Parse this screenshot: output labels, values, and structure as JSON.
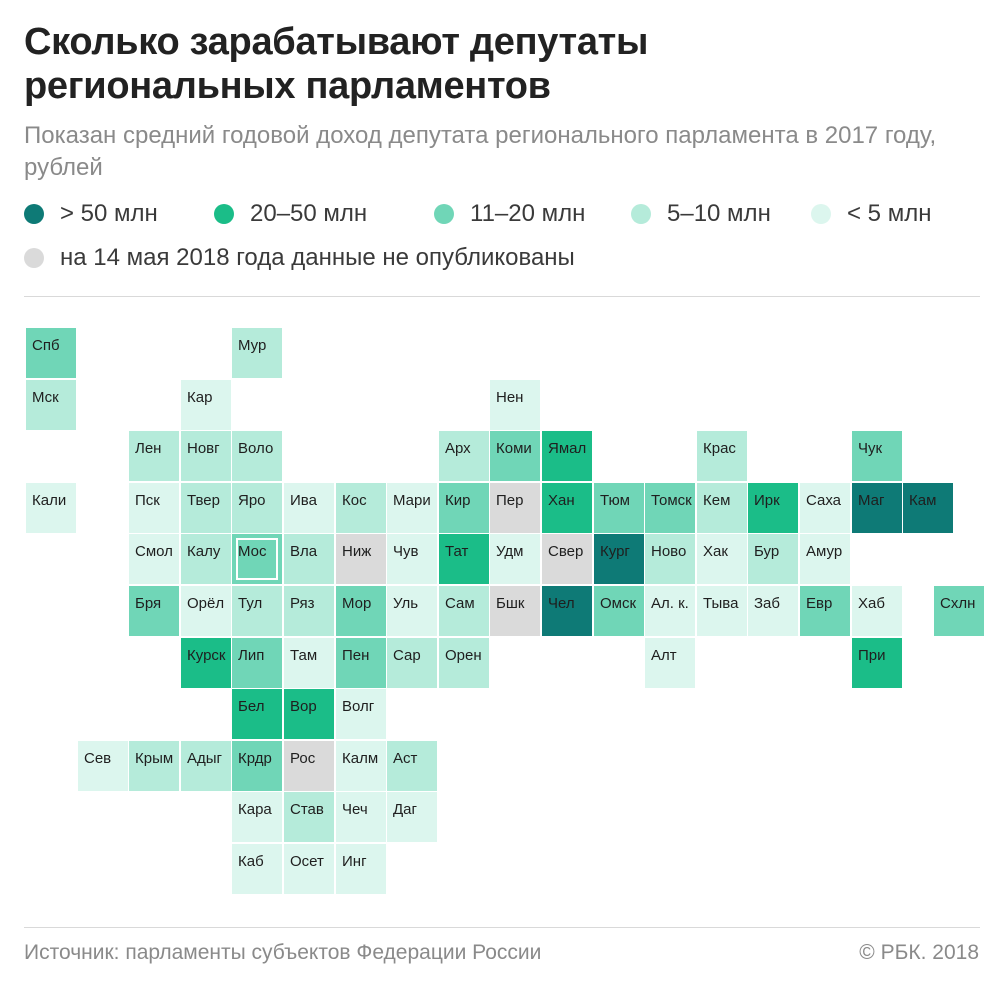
{
  "title": "Сколько зарабатывают депутаты регионального парламентов",
  "title_line1": "Сколько зарабатывают депутаты",
  "title_line2": "региональных парламентов",
  "subtitle": "Показан средний годовой доход депутата регионального парламента в 2017 году, рублей",
  "legend": [
    {
      "key": "c50",
      "label": "> 50 млн",
      "color": "#0e7a76"
    },
    {
      "key": "c20",
      "label": "20–50 млн",
      "color": "#1bbd88"
    },
    {
      "key": "c11",
      "label": "11–20 млн",
      "color": "#70d6b7"
    },
    {
      "key": "c5",
      "label": "5–10 млн",
      "color": "#b5ebda"
    },
    {
      "key": "c0",
      "label": "< 5 млн",
      "color": "#dcf6ee"
    },
    {
      "key": "na",
      "label": "на 14 мая 2018 года данные не опубликованы",
      "color": "#dadada"
    }
  ],
  "regions": [
    {
      "label": "Спб",
      "col": 0,
      "row": 0,
      "cat": "c11"
    },
    {
      "label": "Мур",
      "col": 4,
      "row": 0,
      "cat": "c5"
    },
    {
      "label": "Мск",
      "col": 0,
      "row": 1,
      "cat": "c5"
    },
    {
      "label": "Кар",
      "col": 3,
      "row": 1,
      "cat": "c0"
    },
    {
      "label": "Нен",
      "col": 9,
      "row": 1,
      "cat": "c0"
    },
    {
      "label": "Лен",
      "col": 2,
      "row": 2,
      "cat": "c5"
    },
    {
      "label": "Новг",
      "col": 3,
      "row": 2,
      "cat": "c5"
    },
    {
      "label": "Воло",
      "col": 4,
      "row": 2,
      "cat": "c5"
    },
    {
      "label": "Арх",
      "col": 8,
      "row": 2,
      "cat": "c5"
    },
    {
      "label": "Коми",
      "col": 9,
      "row": 2,
      "cat": "c11"
    },
    {
      "label": "Ямал",
      "col": 10,
      "row": 2,
      "cat": "c20"
    },
    {
      "label": "Крас",
      "col": 13,
      "row": 2,
      "cat": "c5"
    },
    {
      "label": "Чук",
      "col": 16,
      "row": 2,
      "cat": "c11"
    },
    {
      "label": "Кали",
      "col": 0,
      "row": 3,
      "cat": "c0"
    },
    {
      "label": "Пск",
      "col": 2,
      "row": 3,
      "cat": "c0"
    },
    {
      "label": "Твер",
      "col": 3,
      "row": 3,
      "cat": "c5"
    },
    {
      "label": "Яро",
      "col": 4,
      "row": 3,
      "cat": "c5"
    },
    {
      "label": "Ива",
      "col": 5,
      "row": 3,
      "cat": "c0"
    },
    {
      "label": "Кос",
      "col": 6,
      "row": 3,
      "cat": "c5"
    },
    {
      "label": "Мари",
      "col": 7,
      "row": 3,
      "cat": "c0"
    },
    {
      "label": "Кир",
      "col": 8,
      "row": 3,
      "cat": "c11"
    },
    {
      "label": "Пер",
      "col": 9,
      "row": 3,
      "cat": "na"
    },
    {
      "label": "Хан",
      "col": 10,
      "row": 3,
      "cat": "c20"
    },
    {
      "label": "Тюм",
      "col": 11,
      "row": 3,
      "cat": "c11"
    },
    {
      "label": "Томск",
      "col": 12,
      "row": 3,
      "cat": "c11"
    },
    {
      "label": "Кем",
      "col": 13,
      "row": 3,
      "cat": "c5"
    },
    {
      "label": "Ирк",
      "col": 14,
      "row": 3,
      "cat": "c20"
    },
    {
      "label": "Саха",
      "col": 15,
      "row": 3,
      "cat": "c0"
    },
    {
      "label": "Маг",
      "col": 16,
      "row": 3,
      "cat": "c50"
    },
    {
      "label": "Кам",
      "col": 17,
      "row": 3,
      "cat": "c50"
    },
    {
      "label": "Смол",
      "col": 2,
      "row": 4,
      "cat": "c0"
    },
    {
      "label": "Калу",
      "col": 3,
      "row": 4,
      "cat": "c5"
    },
    {
      "label": "Мос",
      "col": 4,
      "row": 4,
      "cat": "c11",
      "boxed": true
    },
    {
      "label": "Вла",
      "col": 5,
      "row": 4,
      "cat": "c5"
    },
    {
      "label": "Ниж",
      "col": 6,
      "row": 4,
      "cat": "na"
    },
    {
      "label": "Чув",
      "col": 7,
      "row": 4,
      "cat": "c0"
    },
    {
      "label": "Тат",
      "col": 8,
      "row": 4,
      "cat": "c20"
    },
    {
      "label": "Удм",
      "col": 9,
      "row": 4,
      "cat": "c0"
    },
    {
      "label": "Свер",
      "col": 10,
      "row": 4,
      "cat": "na"
    },
    {
      "label": "Кург",
      "col": 11,
      "row": 4,
      "cat": "c50"
    },
    {
      "label": "Ново",
      "col": 12,
      "row": 4,
      "cat": "c5"
    },
    {
      "label": "Хак",
      "col": 13,
      "row": 4,
      "cat": "c0"
    },
    {
      "label": "Бур",
      "col": 14,
      "row": 4,
      "cat": "c5"
    },
    {
      "label": "Амур",
      "col": 15,
      "row": 4,
      "cat": "c0"
    },
    {
      "label": "Бря",
      "col": 2,
      "row": 5,
      "cat": "c11"
    },
    {
      "label": "Орёл",
      "col": 3,
      "row": 5,
      "cat": "c0"
    },
    {
      "label": "Тул",
      "col": 4,
      "row": 5,
      "cat": "c5"
    },
    {
      "label": "Ряз",
      "col": 5,
      "row": 5,
      "cat": "c5"
    },
    {
      "label": "Мор",
      "col": 6,
      "row": 5,
      "cat": "c11"
    },
    {
      "label": "Уль",
      "col": 7,
      "row": 5,
      "cat": "c0"
    },
    {
      "label": "Сам",
      "col": 8,
      "row": 5,
      "cat": "c5"
    },
    {
      "label": "Бшк",
      "col": 9,
      "row": 5,
      "cat": "na"
    },
    {
      "label": "Чел",
      "col": 10,
      "row": 5,
      "cat": "c50"
    },
    {
      "label": "Омск",
      "col": 11,
      "row": 5,
      "cat": "c11"
    },
    {
      "label": "Ал. к.",
      "col": 12,
      "row": 5,
      "cat": "c0"
    },
    {
      "label": "Тыва",
      "col": 13,
      "row": 5,
      "cat": "c0"
    },
    {
      "label": "Заб",
      "col": 14,
      "row": 5,
      "cat": "c0"
    },
    {
      "label": "Евр",
      "col": 15,
      "row": 5,
      "cat": "c11"
    },
    {
      "label": "Хаб",
      "col": 16,
      "row": 5,
      "cat": "c0"
    },
    {
      "label": "Схлн",
      "col": 17.6,
      "row": 5,
      "cat": "c11"
    },
    {
      "label": "Курск",
      "col": 3,
      "row": 6,
      "cat": "c20"
    },
    {
      "label": "Лип",
      "col": 4,
      "row": 6,
      "cat": "c11"
    },
    {
      "label": "Там",
      "col": 5,
      "row": 6,
      "cat": "c0"
    },
    {
      "label": "Пен",
      "col": 6,
      "row": 6,
      "cat": "c11"
    },
    {
      "label": "Сар",
      "col": 7,
      "row": 6,
      "cat": "c5"
    },
    {
      "label": "Орен",
      "col": 8,
      "row": 6,
      "cat": "c5"
    },
    {
      "label": "Алт",
      "col": 12,
      "row": 6,
      "cat": "c0"
    },
    {
      "label": "При",
      "col": 16,
      "row": 6,
      "cat": "c20"
    },
    {
      "label": "Бел",
      "col": 4,
      "row": 7,
      "cat": "c20"
    },
    {
      "label": "Вор",
      "col": 5,
      "row": 7,
      "cat": "c20"
    },
    {
      "label": "Волг",
      "col": 6,
      "row": 7,
      "cat": "c0"
    },
    {
      "label": "Сев",
      "col": 1,
      "row": 8,
      "cat": "c0"
    },
    {
      "label": "Крым",
      "col": 2,
      "row": 8,
      "cat": "c5"
    },
    {
      "label": "Адыг",
      "col": 3,
      "row": 8,
      "cat": "c5"
    },
    {
      "label": "Крдр",
      "col": 4,
      "row": 8,
      "cat": "c11"
    },
    {
      "label": "Рос",
      "col": 5,
      "row": 8,
      "cat": "na"
    },
    {
      "label": "Калм",
      "col": 6,
      "row": 8,
      "cat": "c0"
    },
    {
      "label": "Аст",
      "col": 7,
      "row": 8,
      "cat": "c5"
    },
    {
      "label": "Кара",
      "col": 4,
      "row": 9,
      "cat": "c0"
    },
    {
      "label": "Став",
      "col": 5,
      "row": 9,
      "cat": "c5"
    },
    {
      "label": "Чеч",
      "col": 6,
      "row": 9,
      "cat": "c0"
    },
    {
      "label": "Даг",
      "col": 7,
      "row": 9,
      "cat": "c0"
    },
    {
      "label": "Каб",
      "col": 4,
      "row": 10,
      "cat": "c0"
    },
    {
      "label": "Осет",
      "col": 5,
      "row": 10,
      "cat": "c0"
    },
    {
      "label": "Инг",
      "col": 6,
      "row": 10,
      "cat": "c0"
    }
  ],
  "footer": {
    "source": "Источник: парламенты субъектов Федерации России",
    "copyright": "© РБК. 2018"
  }
}
